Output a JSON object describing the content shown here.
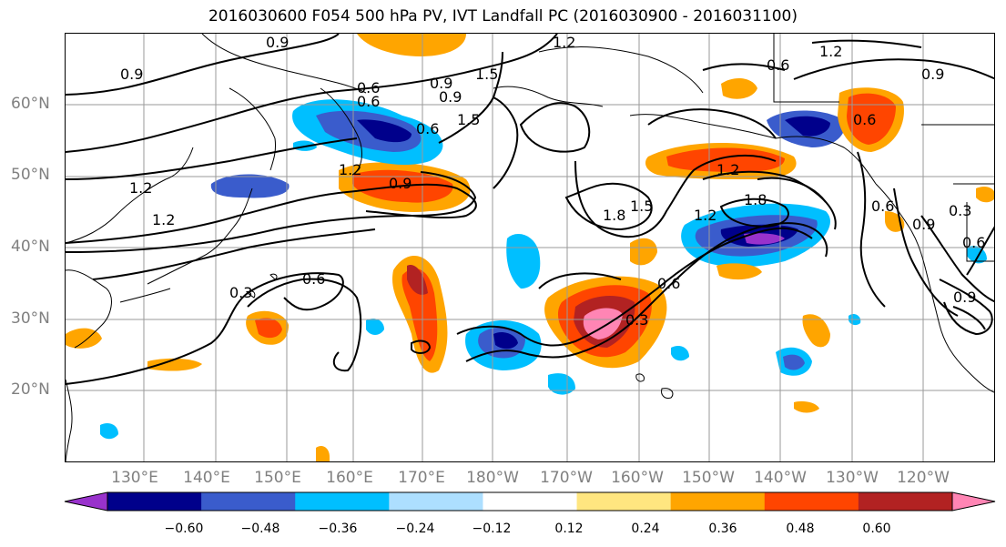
{
  "title": "2016030600 F054 500 hPa PV, IVT Landfall PC (2016030900 - 2016031100)",
  "lat_labels": [
    "60°N",
    "50°N",
    "40°N",
    "30°N",
    "20°N"
  ],
  "lon_labels": [
    "130°E",
    "140°E",
    "150°E",
    "160°E",
    "170°E",
    "180°W",
    "170°W",
    "160°W",
    "150°W",
    "140°W",
    "130°W",
    "120°W"
  ],
  "colorbar": {
    "colors": [
      "#9932CC",
      "#00008B",
      "#3A5CCC",
      "#00BFFF",
      "#ADDFFF",
      "#FFFFFF",
      "#FFE680",
      "#FFA500",
      "#FF4500",
      "#B22222",
      "#FF85B4"
    ],
    "ticks": [
      "−0.60",
      "−0.48",
      "−0.36",
      "−0.24",
      "−0.12",
      "0.12",
      "0.24",
      "0.36",
      "0.48",
      "0.60"
    ]
  },
  "contour_labels": [
    "0.9",
    "1.2",
    "0.9",
    "0.6",
    "1.2",
    "0.9",
    "1.5",
    "0.6",
    "1.2",
    "0.9",
    "1.2",
    "0.6",
    "1.5",
    "1.2",
    "1.8",
    "0.9",
    "0.6",
    "0.6",
    "1.5",
    "1.8",
    "1.2",
    "0.3",
    "0.6",
    "0.3",
    "0.6",
    "0.9",
    "0.3",
    "0.6",
    "0.9",
    "1.2",
    "0.6",
    "0.9"
  ],
  "colors": {
    "contour": "#000000",
    "gridline": "#9a9a9a",
    "coastline": "#000000",
    "axis_text": "#808080"
  }
}
